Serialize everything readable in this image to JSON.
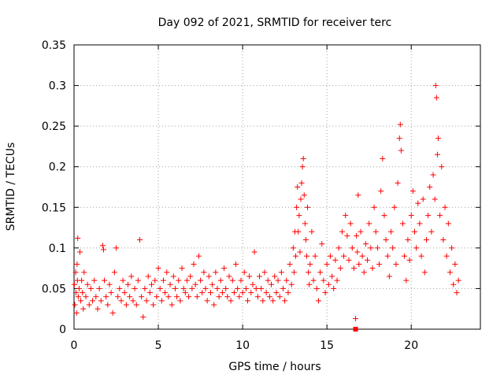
{
  "chart_data": {
    "type": "scatter",
    "title": "Day 092 of 2021, SRMTID for receiver terc",
    "xlabel": "GPS time / hours",
    "ylabel": "SRMTID / TECUs",
    "xlim": [
      0,
      24.1
    ],
    "ylim": [
      0,
      0.35
    ],
    "x_ticks": [
      0,
      5,
      10,
      15,
      20
    ],
    "y_ticks": [
      0,
      0.05,
      0.1,
      0.15,
      0.2,
      0.25,
      0.3,
      0.35
    ],
    "x_tick_labels": [
      "0",
      "5",
      "10",
      "15",
      "20"
    ],
    "y_tick_labels": [
      "0",
      "0.05",
      "0.1",
      "0.15",
      "0.2",
      "0.25",
      "0.3",
      "0.35"
    ],
    "grid": true,
    "marker": "+",
    "color": "#ff0000",
    "series": [
      {
        "name": "SRMTID",
        "points": [
          [
            0.02,
            0.055
          ],
          [
            0.05,
            0.03
          ],
          [
            0.1,
            0.07
          ],
          [
            0.12,
            0.045
          ],
          [
            0.15,
            0.02
          ],
          [
            0.18,
            0.08
          ],
          [
            0.2,
            0.06
          ],
          [
            0.22,
            0.112
          ],
          [
            0.25,
            0.04
          ],
          [
            0.3,
            0.05
          ],
          [
            0.35,
            0.095
          ],
          [
            0.4,
            0.035
          ],
          [
            0.45,
            0.06
          ],
          [
            0.5,
            0.045
          ],
          [
            0.55,
            0.025
          ],
          [
            0.6,
            0.07
          ],
          [
            0.7,
            0.04
          ],
          [
            0.8,
            0.055
          ],
          [
            0.9,
            0.03
          ],
          [
            1.0,
            0.05
          ],
          [
            1.1,
            0.035
          ],
          [
            1.2,
            0.06
          ],
          [
            1.3,
            0.04
          ],
          [
            1.4,
            0.025
          ],
          [
            1.5,
            0.05
          ],
          [
            1.6,
            0.035
          ],
          [
            1.7,
            0.103
          ],
          [
            1.75,
            0.098
          ],
          [
            1.8,
            0.06
          ],
          [
            1.9,
            0.04
          ],
          [
            2.0,
            0.03
          ],
          [
            2.1,
            0.055
          ],
          [
            2.2,
            0.045
          ],
          [
            2.3,
            0.02
          ],
          [
            2.4,
            0.07
          ],
          [
            2.5,
            0.1
          ],
          [
            2.6,
            0.04
          ],
          [
            2.7,
            0.05
          ],
          [
            2.8,
            0.035
          ],
          [
            2.9,
            0.06
          ],
          [
            3.0,
            0.045
          ],
          [
            3.1,
            0.03
          ],
          [
            3.2,
            0.055
          ],
          [
            3.3,
            0.04
          ],
          [
            3.4,
            0.065
          ],
          [
            3.5,
            0.035
          ],
          [
            3.6,
            0.05
          ],
          [
            3.7,
            0.03
          ],
          [
            3.8,
            0.06
          ],
          [
            3.9,
            0.11
          ],
          [
            4.0,
            0.04
          ],
          [
            4.1,
            0.015
          ],
          [
            4.2,
            0.05
          ],
          [
            4.3,
            0.035
          ],
          [
            4.4,
            0.065
          ],
          [
            4.5,
            0.045
          ],
          [
            4.6,
            0.055
          ],
          [
            4.7,
            0.03
          ],
          [
            4.8,
            0.06
          ],
          [
            4.9,
            0.04
          ],
          [
            5.0,
            0.075
          ],
          [
            5.1,
            0.05
          ],
          [
            5.2,
            0.035
          ],
          [
            5.3,
            0.06
          ],
          [
            5.4,
            0.045
          ],
          [
            5.5,
            0.07
          ],
          [
            5.6,
            0.04
          ],
          [
            5.7,
            0.055
          ],
          [
            5.8,
            0.03
          ],
          [
            5.9,
            0.065
          ],
          [
            6.0,
            0.05
          ],
          [
            6.1,
            0.04
          ],
          [
            6.2,
            0.06
          ],
          [
            6.3,
            0.035
          ],
          [
            6.4,
            0.075
          ],
          [
            6.5,
            0.05
          ],
          [
            6.6,
            0.045
          ],
          [
            6.7,
            0.06
          ],
          [
            6.8,
            0.04
          ],
          [
            6.9,
            0.065
          ],
          [
            7.0,
            0.05
          ],
          [
            7.1,
            0.08
          ],
          [
            7.2,
            0.055
          ],
          [
            7.3,
            0.04
          ],
          [
            7.4,
            0.09
          ],
          [
            7.5,
            0.06
          ],
          [
            7.6,
            0.045
          ],
          [
            7.7,
            0.07
          ],
          [
            7.8,
            0.05
          ],
          [
            7.9,
            0.035
          ],
          [
            8.0,
            0.065
          ],
          [
            8.1,
            0.045
          ],
          [
            8.2,
            0.055
          ],
          [
            8.3,
            0.03
          ],
          [
            8.4,
            0.07
          ],
          [
            8.5,
            0.05
          ],
          [
            8.6,
            0.04
          ],
          [
            8.7,
            0.06
          ],
          [
            8.8,
            0.045
          ],
          [
            8.9,
            0.075
          ],
          [
            9.0,
            0.05
          ],
          [
            9.1,
            0.04
          ],
          [
            9.2,
            0.065
          ],
          [
            9.3,
            0.035
          ],
          [
            9.4,
            0.06
          ],
          [
            9.5,
            0.045
          ],
          [
            9.6,
            0.08
          ],
          [
            9.7,
            0.05
          ],
          [
            9.8,
            0.04
          ],
          [
            9.9,
            0.06
          ],
          [
            10.0,
            0.045
          ],
          [
            10.1,
            0.07
          ],
          [
            10.2,
            0.05
          ],
          [
            10.3,
            0.035
          ],
          [
            10.4,
            0.065
          ],
          [
            10.5,
            0.045
          ],
          [
            10.6,
            0.055
          ],
          [
            10.7,
            0.095
          ],
          [
            10.8,
            0.05
          ],
          [
            10.9,
            0.04
          ],
          [
            11.0,
            0.065
          ],
          [
            11.1,
            0.05
          ],
          [
            11.2,
            0.035
          ],
          [
            11.3,
            0.07
          ],
          [
            11.4,
            0.045
          ],
          [
            11.5,
            0.06
          ],
          [
            11.6,
            0.04
          ],
          [
            11.7,
            0.055
          ],
          [
            11.8,
            0.035
          ],
          [
            11.9,
            0.065
          ],
          [
            12.0,
            0.045
          ],
          [
            12.1,
            0.06
          ],
          [
            12.2,
            0.04
          ],
          [
            12.3,
            0.07
          ],
          [
            12.4,
            0.05
          ],
          [
            12.5,
            0.035
          ],
          [
            12.6,
            0.06
          ],
          [
            12.7,
            0.045
          ],
          [
            12.8,
            0.08
          ],
          [
            12.9,
            0.055
          ],
          [
            13.0,
            0.1
          ],
          [
            13.05,
            0.07
          ],
          [
            13.1,
            0.12
          ],
          [
            13.15,
            0.09
          ],
          [
            13.2,
            0.15
          ],
          [
            13.25,
            0.175
          ],
          [
            13.3,
            0.12
          ],
          [
            13.35,
            0.14
          ],
          [
            13.4,
            0.095
          ],
          [
            13.45,
            0.16
          ],
          [
            13.5,
            0.18
          ],
          [
            13.55,
            0.2
          ],
          [
            13.6,
            0.21
          ],
          [
            13.65,
            0.165
          ],
          [
            13.7,
            0.13
          ],
          [
            13.75,
            0.11
          ],
          [
            13.8,
            0.09
          ],
          [
            13.85,
            0.15
          ],
          [
            13.9,
            0.07
          ],
          [
            13.95,
            0.055
          ],
          [
            14.0,
            0.08
          ],
          [
            14.1,
            0.12
          ],
          [
            14.2,
            0.06
          ],
          [
            14.3,
            0.09
          ],
          [
            14.4,
            0.05
          ],
          [
            14.5,
            0.035
          ],
          [
            14.6,
            0.07
          ],
          [
            14.7,
            0.105
          ],
          [
            14.8,
            0.06
          ],
          [
            14.9,
            0.045
          ],
          [
            15.0,
            0.08
          ],
          [
            15.1,
            0.055
          ],
          [
            15.2,
            0.09
          ],
          [
            15.3,
            0.065
          ],
          [
            15.4,
            0.05
          ],
          [
            15.5,
            0.085
          ],
          [
            15.6,
            0.06
          ],
          [
            15.7,
            0.1
          ],
          [
            15.8,
            0.075
          ],
          [
            15.9,
            0.12
          ],
          [
            16.0,
            0.09
          ],
          [
            16.1,
            0.14
          ],
          [
            16.2,
            0.115
          ],
          [
            16.3,
            0.085
          ],
          [
            16.4,
            0.13
          ],
          [
            16.5,
            0.1
          ],
          [
            16.6,
            0.075
          ],
          [
            16.7,
            0.013
          ],
          [
            16.75,
            0.115
          ],
          [
            16.8,
            0.095
          ],
          [
            16.85,
            0.165
          ],
          [
            16.9,
            0.08
          ],
          [
            17.0,
            0.12
          ],
          [
            17.1,
            0.09
          ],
          [
            17.2,
            0.07
          ],
          [
            17.3,
            0.105
          ],
          [
            17.4,
            0.085
          ],
          [
            17.5,
            0.13
          ],
          [
            17.6,
            0.1
          ],
          [
            17.7,
            0.075
          ],
          [
            17.8,
            0.15
          ],
          [
            17.9,
            0.12
          ],
          [
            18.0,
            0.1
          ],
          [
            18.1,
            0.08
          ],
          [
            18.2,
            0.17
          ],
          [
            18.3,
            0.21
          ],
          [
            18.4,
            0.14
          ],
          [
            18.5,
            0.11
          ],
          [
            18.6,
            0.09
          ],
          [
            18.7,
            0.065
          ],
          [
            18.8,
            0.12
          ],
          [
            18.9,
            0.1
          ],
          [
            19.0,
            0.15
          ],
          [
            19.1,
            0.08
          ],
          [
            19.2,
            0.18
          ],
          [
            19.3,
            0.235
          ],
          [
            19.35,
            0.252
          ],
          [
            19.4,
            0.22
          ],
          [
            19.5,
            0.13
          ],
          [
            19.6,
            0.09
          ],
          [
            19.7,
            0.06
          ],
          [
            19.8,
            0.11
          ],
          [
            19.9,
            0.085
          ],
          [
            20.0,
            0.14
          ],
          [
            20.1,
            0.17
          ],
          [
            20.2,
            0.12
          ],
          [
            20.3,
            0.1
          ],
          [
            20.4,
            0.155
          ],
          [
            20.5,
            0.13
          ],
          [
            20.6,
            0.09
          ],
          [
            20.7,
            0.16
          ],
          [
            20.8,
            0.07
          ],
          [
            20.9,
            0.11
          ],
          [
            21.0,
            0.14
          ],
          [
            21.1,
            0.175
          ],
          [
            21.2,
            0.12
          ],
          [
            21.3,
            0.19
          ],
          [
            21.4,
            0.16
          ],
          [
            21.45,
            0.3
          ],
          [
            21.5,
            0.285
          ],
          [
            21.55,
            0.215
          ],
          [
            21.6,
            0.235
          ],
          [
            21.7,
            0.14
          ],
          [
            21.8,
            0.2
          ],
          [
            21.9,
            0.11
          ],
          [
            22.0,
            0.15
          ],
          [
            22.1,
            0.09
          ],
          [
            22.2,
            0.13
          ],
          [
            22.3,
            0.07
          ],
          [
            22.4,
            0.1
          ],
          [
            22.5,
            0.055
          ],
          [
            22.6,
            0.08
          ],
          [
            22.7,
            0.045
          ],
          [
            22.8,
            0.06
          ]
        ]
      }
    ]
  },
  "markers": {
    "legend_title_color": "#ff0000",
    "baseline_marker": [
      16.7,
      0.0
    ]
  }
}
